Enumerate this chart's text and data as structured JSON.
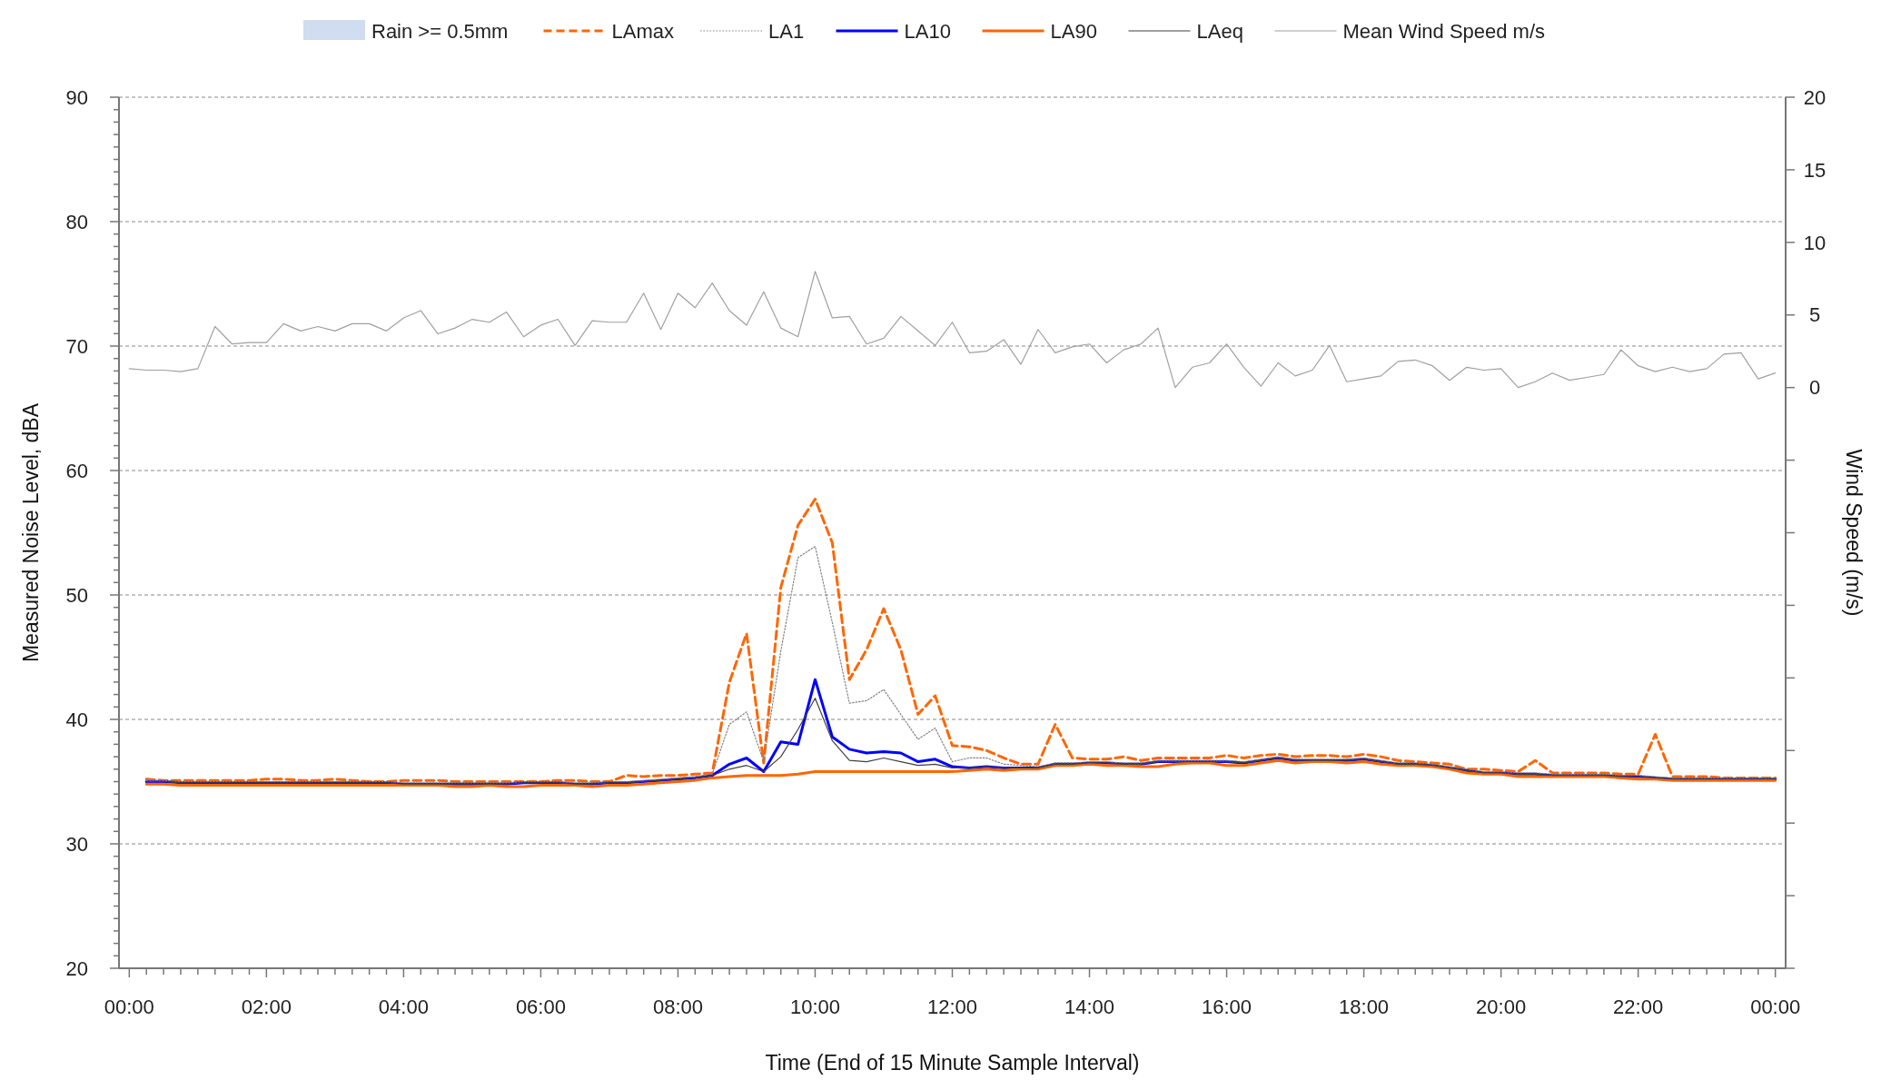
{
  "chart_data": {
    "type": "line",
    "xlabel": "Time (End of 15 Minute Sample Interval)",
    "ylabel": "Measured Noise Level, dBA",
    "y2label": "Wind Speed (m/s)",
    "xlim": [
      -0.15,
      24.15
    ],
    "xticks": [
      {
        "value": 0,
        "label": "00:00"
      },
      {
        "value": 0.25,
        "label": null
      },
      {
        "value": 0.5,
        "label": null
      },
      {
        "value": 0.75,
        "label": null
      },
      {
        "value": 1,
        "label": null
      },
      {
        "value": 1.25,
        "label": null
      },
      {
        "value": 1.5,
        "label": null
      },
      {
        "value": 1.75,
        "label": null
      },
      {
        "value": 2,
        "label": "02:00"
      },
      {
        "value": 2.25,
        "label": null
      },
      {
        "value": 2.5,
        "label": null
      },
      {
        "value": 2.75,
        "label": null
      },
      {
        "value": 3,
        "label": null
      },
      {
        "value": 3.25,
        "label": null
      },
      {
        "value": 3.5,
        "label": null
      },
      {
        "value": 3.75,
        "label": null
      },
      {
        "value": 4,
        "label": "04:00"
      },
      {
        "value": 4.25,
        "label": null
      },
      {
        "value": 4.5,
        "label": null
      },
      {
        "value": 4.75,
        "label": null
      },
      {
        "value": 5,
        "label": null
      },
      {
        "value": 5.25,
        "label": null
      },
      {
        "value": 5.5,
        "label": null
      },
      {
        "value": 5.75,
        "label": null
      },
      {
        "value": 6,
        "label": "06:00"
      },
      {
        "value": 6.25,
        "label": null
      },
      {
        "value": 6.5,
        "label": null
      },
      {
        "value": 6.75,
        "label": null
      },
      {
        "value": 7,
        "label": null
      },
      {
        "value": 7.25,
        "label": null
      },
      {
        "value": 7.5,
        "label": null
      },
      {
        "value": 7.75,
        "label": null
      },
      {
        "value": 8,
        "label": "08:00"
      },
      {
        "value": 8.25,
        "label": null
      },
      {
        "value": 8.5,
        "label": null
      },
      {
        "value": 8.75,
        "label": null
      },
      {
        "value": 9,
        "label": null
      },
      {
        "value": 9.25,
        "label": null
      },
      {
        "value": 9.5,
        "label": null
      },
      {
        "value": 9.75,
        "label": null
      },
      {
        "value": 10,
        "label": "10:00"
      },
      {
        "value": 10.25,
        "label": null
      },
      {
        "value": 10.5,
        "label": null
      },
      {
        "value": 10.75,
        "label": null
      },
      {
        "value": 11,
        "label": null
      },
      {
        "value": 11.25,
        "label": null
      },
      {
        "value": 11.5,
        "label": null
      },
      {
        "value": 11.75,
        "label": null
      },
      {
        "value": 12,
        "label": "12:00"
      },
      {
        "value": 12.25,
        "label": null
      },
      {
        "value": 12.5,
        "label": null
      },
      {
        "value": 12.75,
        "label": null
      },
      {
        "value": 13,
        "label": null
      },
      {
        "value": 13.25,
        "label": null
      },
      {
        "value": 13.5,
        "label": null
      },
      {
        "value": 13.75,
        "label": null
      },
      {
        "value": 14,
        "label": "14:00"
      },
      {
        "value": 14.25,
        "label": null
      },
      {
        "value": 14.5,
        "label": null
      },
      {
        "value": 14.75,
        "label": null
      },
      {
        "value": 15,
        "label": null
      },
      {
        "value": 15.25,
        "label": null
      },
      {
        "value": 15.5,
        "label": null
      },
      {
        "value": 15.75,
        "label": null
      },
      {
        "value": 16,
        "label": "16:00"
      },
      {
        "value": 16.25,
        "label": null
      },
      {
        "value": 16.5,
        "label": null
      },
      {
        "value": 16.75,
        "label": null
      },
      {
        "value": 17,
        "label": null
      },
      {
        "value": 17.25,
        "label": null
      },
      {
        "value": 17.5,
        "label": null
      },
      {
        "value": 17.75,
        "label": null
      },
      {
        "value": 18,
        "label": "18:00"
      },
      {
        "value": 18.25,
        "label": null
      },
      {
        "value": 18.5,
        "label": null
      },
      {
        "value": 18.75,
        "label": null
      },
      {
        "value": 19,
        "label": null
      },
      {
        "value": 19.25,
        "label": null
      },
      {
        "value": 19.5,
        "label": null
      },
      {
        "value": 19.75,
        "label": null
      },
      {
        "value": 20,
        "label": "20:00"
      },
      {
        "value": 20.25,
        "label": null
      },
      {
        "value": 20.5,
        "label": null
      },
      {
        "value": 20.75,
        "label": null
      },
      {
        "value": 21,
        "label": null
      },
      {
        "value": 21.25,
        "label": null
      },
      {
        "value": 21.5,
        "label": null
      },
      {
        "value": 21.75,
        "label": null
      },
      {
        "value": 22,
        "label": "22:00"
      },
      {
        "value": 22.25,
        "label": null
      },
      {
        "value": 22.5,
        "label": null
      },
      {
        "value": 22.75,
        "label": null
      },
      {
        "value": 23,
        "label": null
      },
      {
        "value": 23.25,
        "label": null
      },
      {
        "value": 23.5,
        "label": null
      },
      {
        "value": 23.75,
        "label": null
      },
      {
        "value": 24,
        "label": "00:00"
      }
    ],
    "ylim": [
      20,
      90
    ],
    "yticks": [
      20,
      {
        "value": 21,
        "label": null
      },
      {
        "value": 22,
        "label": null
      },
      {
        "value": 23,
        "label": null
      },
      {
        "value": 24,
        "label": null
      },
      {
        "value": 25,
        "label": null
      },
      {
        "value": 26,
        "label": null
      },
      {
        "value": 27,
        "label": null
      },
      {
        "value": 28,
        "label": null
      },
      {
        "value": 29,
        "label": null
      },
      30,
      {
        "value": 31,
        "label": null
      },
      {
        "value": 32,
        "label": null
      },
      {
        "value": 33,
        "label": null
      },
      {
        "value": 34,
        "label": null
      },
      {
        "value": 35,
        "label": null
      },
      {
        "value": 36,
        "label": null
      },
      {
        "value": 37,
        "label": null
      },
      {
        "value": 38,
        "label": null
      },
      {
        "value": 39,
        "label": null
      },
      40,
      {
        "value": 41,
        "label": null
      },
      {
        "value": 42,
        "label": null
      },
      {
        "value": 43,
        "label": null
      },
      {
        "value": 44,
        "label": null
      },
      {
        "value": 45,
        "label": null
      },
      {
        "value": 46,
        "label": null
      },
      {
        "value": 47,
        "label": null
      },
      {
        "value": 48,
        "label": null
      },
      {
        "value": 49,
        "label": null
      },
      50,
      {
        "value": 51,
        "label": null
      },
      {
        "value": 52,
        "label": null
      },
      {
        "value": 53,
        "label": null
      },
      {
        "value": 54,
        "label": null
      },
      {
        "value": 55,
        "label": null
      },
      {
        "value": 56,
        "label": null
      },
      {
        "value": 57,
        "label": null
      },
      {
        "value": 58,
        "label": null
      },
      {
        "value": 59,
        "label": null
      },
      60,
      {
        "value": 61,
        "label": null
      },
      {
        "value": 62,
        "label": null
      },
      {
        "value": 63,
        "label": null
      },
      {
        "value": 64,
        "label": null
      },
      {
        "value": 65,
        "label": null
      },
      {
        "value": 66,
        "label": null
      },
      {
        "value": 67,
        "label": null
      },
      {
        "value": 68,
        "label": null
      },
      {
        "value": 69,
        "label": null
      },
      70,
      {
        "value": 71,
        "label": null
      },
      {
        "value": 72,
        "label": null
      },
      {
        "value": 73,
        "label": null
      },
      {
        "value": 74,
        "label": null
      },
      {
        "value": 75,
        "label": null
      },
      {
        "value": 76,
        "label": null
      },
      {
        "value": 77,
        "label": null
      },
      {
        "value": 78,
        "label": null
      },
      {
        "value": 79,
        "label": null
      },
      80,
      {
        "value": 81,
        "label": null
      },
      {
        "value": 82,
        "label": null
      },
      {
        "value": 83,
        "label": null
      },
      {
        "value": 84,
        "label": null
      },
      {
        "value": 85,
        "label": null
      },
      {
        "value": 86,
        "label": null
      },
      {
        "value": 87,
        "label": null
      },
      {
        "value": 88,
        "label": null
      },
      {
        "value": 89,
        "label": null
      },
      90
    ],
    "y2lim": [
      -40,
      20
    ],
    "y2ticks": [
      {
        "value": -40,
        "label": null
      },
      {
        "value": -35,
        "label": null
      },
      {
        "value": -30,
        "label": null
      },
      {
        "value": -25,
        "label": null
      },
      {
        "value": -20,
        "label": null
      },
      {
        "value": -15,
        "label": null
      },
      {
        "value": -10,
        "label": null
      },
      {
        "value": -5,
        "label": null
      },
      0,
      5,
      10,
      15,
      20
    ],
    "grid": "y",
    "legend": "top",
    "x": [
      0,
      0.25,
      0.5,
      0.75,
      1,
      1.25,
      1.5,
      1.75,
      2,
      2.25,
      2.5,
      2.75,
      3,
      3.25,
      3.5,
      3.75,
      4,
      4.25,
      4.5,
      4.75,
      5,
      5.25,
      5.5,
      5.75,
      6,
      6.25,
      6.5,
      6.75,
      7,
      7.25,
      7.5,
      7.75,
      8,
      8.25,
      8.5,
      8.75,
      9,
      9.25,
      9.5,
      9.75,
      10,
      10.25,
      10.5,
      10.75,
      11,
      11.25,
      11.5,
      11.75,
      12,
      12.25,
      12.5,
      12.75,
      13,
      13.25,
      13.5,
      13.75,
      14,
      14.25,
      14.5,
      14.75,
      15,
      15.25,
      15.5,
      15.75,
      16,
      16.25,
      16.5,
      16.75,
      17,
      17.25,
      17.5,
      17.75,
      18,
      18.25,
      18.5,
      18.75,
      19,
      19.25,
      19.5,
      19.75,
      20,
      20.25,
      20.5,
      20.75,
      21,
      21.25,
      21.5,
      21.75,
      22,
      22.25,
      22.5,
      22.75,
      23,
      23.25,
      23.5,
      23.75,
      24
    ],
    "series": [
      {
        "name": "Rain >= 0.5mm",
        "type": "bar",
        "color": "#d0dcef",
        "values": [
          null,
          null,
          null,
          null,
          null,
          null,
          null,
          null,
          null,
          null,
          null,
          null,
          null,
          null,
          null,
          null,
          null,
          null,
          null,
          null,
          null,
          null,
          null,
          null,
          null,
          null,
          null,
          null,
          null,
          null,
          null,
          null,
          null,
          null,
          null,
          null,
          null,
          null,
          null,
          null,
          null,
          null,
          null,
          null,
          null,
          null,
          null,
          null,
          null,
          null,
          null,
          null,
          null,
          null,
          null,
          null,
          null,
          null,
          null,
          null,
          null,
          null,
          null,
          null,
          null,
          null,
          null,
          null,
          null,
          null,
          null,
          null,
          null,
          null,
          null,
          null,
          null,
          null,
          null,
          null,
          null,
          null,
          null,
          null,
          null,
          null,
          null,
          null,
          null,
          null,
          null,
          null,
          null,
          null,
          null,
          null,
          null
        ]
      },
      {
        "name": "LAmax",
        "color": "#ff6600",
        "line_style": "dashed",
        "values": [
          null,
          35.2,
          35.1,
          35.1,
          35.1,
          35.1,
          35.1,
          35.1,
          35.2,
          35.2,
          35.1,
          35.1,
          35.2,
          35.1,
          35.0,
          35.0,
          35.1,
          35.1,
          35.1,
          35.0,
          35.0,
          35.0,
          35.0,
          35.0,
          35.0,
          35.1,
          35.1,
          35.0,
          35.0,
          35.5,
          35.4,
          35.5,
          35.5,
          35.6,
          35.7,
          43.0,
          46.9,
          36.5,
          50.6,
          55.6,
          57.7,
          54.2,
          43.2,
          45.6,
          48.9,
          45.6,
          40.4,
          41.9,
          37.9,
          37.8,
          37.5,
          36.9,
          36.4,
          36.4,
          39.6,
          36.9,
          36.8,
          36.8,
          37.0,
          36.7,
          36.9,
          36.9,
          36.9,
          36.9,
          37.1,
          36.9,
          37.1,
          37.2,
          37.0,
          37.1,
          37.1,
          37.0,
          37.2,
          37.0,
          36.7,
          36.6,
          36.5,
          36.4,
          36.0,
          36.0,
          35.9,
          35.8,
          36.7,
          35.7,
          35.7,
          35.7,
          35.7,
          35.6,
          35.6,
          38.8,
          35.4,
          35.4,
          35.4,
          35.3,
          35.3,
          35.3,
          35.3
        ]
      },
      {
        "name": "LA1",
        "color": "#808080",
        "line_style": "dotted",
        "values": [
          null,
          35.1,
          35.1,
          35.0,
          35.0,
          35.0,
          35.0,
          35.0,
          35.0,
          35.0,
          35.0,
          35.0,
          35.0,
          35.0,
          35.0,
          35.0,
          34.9,
          34.9,
          34.9,
          34.9,
          34.9,
          34.9,
          34.9,
          35.0,
          35.0,
          35.0,
          34.9,
          34.9,
          35.0,
          35.0,
          35.1,
          35.2,
          35.3,
          35.4,
          35.6,
          39.6,
          40.6,
          36.6,
          45.5,
          53.0,
          53.9,
          47.8,
          41.3,
          41.5,
          42.4,
          40.4,
          38.4,
          39.3,
          36.6,
          36.9,
          36.9,
          36.4,
          36.3,
          36.2,
          36.5,
          36.5,
          36.6,
          36.6,
          36.5,
          36.5,
          36.7,
          36.7,
          36.7,
          36.7,
          36.7,
          36.6,
          36.8,
          37.0,
          36.8,
          36.8,
          36.8,
          36.8,
          36.9,
          36.7,
          36.5,
          36.5,
          36.4,
          36.2,
          36.0,
          35.8,
          35.8,
          35.7,
          35.7,
          35.6,
          35.6,
          35.6,
          35.6,
          35.5,
          35.5,
          35.4,
          35.3,
          35.3,
          35.3,
          35.3,
          35.3,
          35.3,
          35.3
        ]
      },
      {
        "name": "LA10",
        "color": "#0000ff",
        "line_style": "solid",
        "values": [
          null,
          35.0,
          35.0,
          34.9,
          34.9,
          34.9,
          34.9,
          34.9,
          34.9,
          34.9,
          34.9,
          34.9,
          34.9,
          34.9,
          34.9,
          34.9,
          34.8,
          34.8,
          34.8,
          34.8,
          34.8,
          34.8,
          34.8,
          34.9,
          34.9,
          34.9,
          34.8,
          34.8,
          34.9,
          34.9,
          35.0,
          35.1,
          35.2,
          35.3,
          35.5,
          36.4,
          36.9,
          35.8,
          38.2,
          38.0,
          43.2,
          38.6,
          37.6,
          37.3,
          37.4,
          37.3,
          36.6,
          36.8,
          36.2,
          36.1,
          36.2,
          36.1,
          36.1,
          36.1,
          36.4,
          36.4,
          36.5,
          36.5,
          36.4,
          36.4,
          36.6,
          36.6,
          36.6,
          36.6,
          36.6,
          36.5,
          36.7,
          36.9,
          36.7,
          36.7,
          36.7,
          36.7,
          36.8,
          36.6,
          36.4,
          36.4,
          36.3,
          36.1,
          35.9,
          35.7,
          35.7,
          35.6,
          35.6,
          35.5,
          35.5,
          35.5,
          35.5,
          35.4,
          35.4,
          35.3,
          35.2,
          35.2,
          35.2,
          35.2,
          35.2,
          35.2,
          35.2
        ]
      },
      {
        "name": "LA90",
        "color": "#ff6600",
        "line_style": "solid",
        "values": [
          null,
          34.8,
          34.8,
          34.7,
          34.7,
          34.7,
          34.7,
          34.7,
          34.7,
          34.7,
          34.7,
          34.7,
          34.7,
          34.7,
          34.7,
          34.7,
          34.7,
          34.7,
          34.7,
          34.6,
          34.6,
          34.7,
          34.6,
          34.6,
          34.7,
          34.7,
          34.7,
          34.6,
          34.7,
          34.7,
          34.8,
          34.9,
          35.0,
          35.1,
          35.3,
          35.4,
          35.5,
          35.5,
          35.5,
          35.6,
          35.8,
          35.8,
          35.8,
          35.8,
          35.8,
          35.8,
          35.8,
          35.8,
          35.8,
          35.9,
          36.0,
          35.9,
          36.0,
          36.0,
          36.3,
          36.3,
          36.4,
          36.3,
          36.3,
          36.2,
          36.2,
          36.4,
          36.5,
          36.5,
          36.3,
          36.3,
          36.5,
          36.7,
          36.5,
          36.6,
          36.6,
          36.5,
          36.6,
          36.4,
          36.3,
          36.3,
          36.2,
          36.0,
          35.7,
          35.6,
          35.6,
          35.4,
          35.4,
          35.4,
          35.4,
          35.4,
          35.4,
          35.3,
          35.2,
          35.2,
          35.1,
          35.1,
          35.1,
          35.1,
          35.1,
          35.1,
          35.1
        ]
      },
      {
        "name": "LAeq",
        "color": "#404040",
        "line_style": "solid",
        "values": [
          null,
          35.0,
          35.0,
          34.9,
          34.9,
          34.9,
          34.9,
          34.9,
          34.9,
          34.9,
          34.9,
          34.9,
          34.9,
          34.9,
          34.9,
          34.9,
          34.8,
          34.8,
          34.8,
          34.8,
          34.8,
          34.8,
          34.8,
          34.9,
          34.9,
          34.9,
          34.8,
          34.8,
          34.9,
          34.9,
          35.0,
          35.1,
          35.2,
          35.3,
          35.5,
          36.0,
          36.3,
          35.8,
          37.0,
          39.2,
          41.7,
          38.3,
          36.7,
          36.6,
          36.9,
          36.6,
          36.3,
          36.4,
          36.1,
          36.1,
          36.2,
          36.1,
          36.1,
          36.1,
          36.4,
          36.4,
          36.5,
          36.5,
          36.4,
          36.4,
          36.6,
          36.6,
          36.6,
          36.6,
          36.6,
          36.5,
          36.7,
          36.9,
          36.7,
          36.7,
          36.7,
          36.7,
          36.8,
          36.6,
          36.4,
          36.4,
          36.3,
          36.1,
          35.9,
          35.7,
          35.7,
          35.6,
          35.6,
          35.5,
          35.5,
          35.5,
          35.5,
          35.4,
          35.4,
          35.3,
          35.2,
          35.2,
          35.2,
          35.2,
          35.2,
          35.2,
          35.2
        ]
      },
      {
        "name": "Mean Wind Speed m/s",
        "color": "#a0a0a0",
        "line_style": "solid",
        "axis": "y2",
        "values": [
          1.3,
          1.2,
          1.2,
          1.1,
          1.3,
          4.2,
          3.0,
          3.1,
          3.1,
          4.4,
          3.9,
          4.2,
          3.9,
          4.4,
          4.4,
          3.9,
          4.8,
          5.3,
          3.7,
          4.1,
          4.7,
          4.5,
          5.2,
          3.5,
          4.3,
          4.7,
          2.9,
          4.6,
          4.5,
          4.5,
          6.5,
          4.0,
          6.5,
          5.5,
          7.2,
          5.3,
          4.3,
          6.6,
          4.1,
          3.5,
          8.0,
          4.8,
          4.9,
          3.0,
          3.4,
          4.9,
          3.9,
          2.9,
          4.5,
          2.4,
          2.5,
          3.3,
          1.6,
          4.0,
          2.4,
          2.8,
          3.0,
          1.7,
          2.6,
          3.0,
          4.1,
          0.0,
          1.4,
          1.7,
          3.0,
          1.4,
          0.1,
          1.7,
          0.8,
          1.2,
          2.9,
          0.4,
          0.6,
          0.8,
          1.8,
          1.9,
          1.5,
          0.5,
          1.4,
          1.2,
          1.3,
          0.0,
          0.4,
          1.0,
          0.5,
          0.7,
          0.9,
          2.6,
          1.5,
          1.1,
          1.4,
          1.1,
          1.3,
          2.3,
          2.4,
          0.6,
          1.0
        ]
      }
    ]
  }
}
